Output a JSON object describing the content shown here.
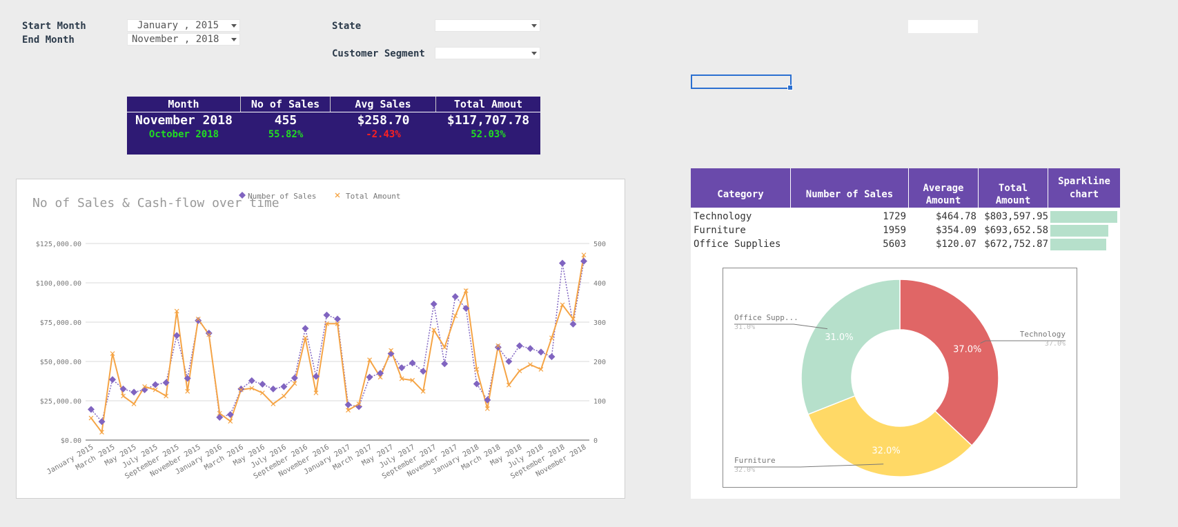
{
  "filters": {
    "start_month_label": "Start Month",
    "start_month_value": "January , 2015",
    "end_month_label": "End Month",
    "end_month_value": "November , 2018",
    "state_label": "State",
    "state_value": "",
    "segment_label": "Customer Segment",
    "segment_value": ""
  },
  "kpi": {
    "headers": [
      "Month",
      "No of Sales",
      "Avg Sales",
      "Total Amout"
    ],
    "current": [
      "November 2018",
      "455",
      "$258.70",
      "$117,707.78"
    ],
    "compare": [
      "October 2018",
      "55.82%",
      "-2.43%",
      "52.03%"
    ],
    "colors": {
      "bg": "#2e1a74",
      "positive": "#22dd22",
      "negative": "#ff2020"
    }
  },
  "category_table": {
    "headers": [
      "Category",
      "Number of Sales",
      "Average Amount",
      "Total Amount",
      "Sparkline chart"
    ],
    "rows": [
      {
        "category": "Technology",
        "sales": "1729",
        "avg": "$464.78",
        "total": "$803,597.95",
        "spark": 1.0
      },
      {
        "category": "Furniture",
        "sales": "1959",
        "avg": "$354.09",
        "total": "$693,652.58",
        "spark": 0.863
      },
      {
        "category": "Office Supplies",
        "sales": "5603",
        "avg": "$120.07",
        "total": "$672,752.87",
        "spark": 0.837
      }
    ]
  },
  "chart_data": [
    {
      "type": "line",
      "title": "No of Sales & Cash-flow over time",
      "x": [
        "January 2015",
        "February 2015",
        "March 2015",
        "April 2015",
        "May 2015",
        "June 2015",
        "July 2015",
        "August 2015",
        "September 2015",
        "October 2015",
        "November 2015",
        "December 2015",
        "January 2016",
        "February 2016",
        "March 2016",
        "April 2016",
        "May 2016",
        "June 2016",
        "July 2016",
        "August 2016",
        "September 2016",
        "October 2016",
        "November 2016",
        "December 2016",
        "January 2017",
        "February 2017",
        "March 2017",
        "April 2017",
        "May 2017",
        "June 2017",
        "July 2017",
        "August 2017",
        "September 2017",
        "October 2017",
        "November 2017",
        "December 2017",
        "January 2018",
        "February 2018",
        "March 2018",
        "April 2018",
        "May 2018",
        "June 2018",
        "July 2018",
        "August 2018",
        "September 2018",
        "October 2018",
        "November 2018"
      ],
      "x_tick_labels": [
        "January 2015",
        "March 2015",
        "May 2015",
        "July 2015",
        "September 2015",
        "November 2015",
        "January 2016",
        "March 2016",
        "May 2016",
        "July 2016",
        "September 2016",
        "November 2016",
        "January 2017",
        "March 2017",
        "May 2017",
        "July 2017",
        "September 2017",
        "November 2017",
        "January 2018",
        "March 2018",
        "May 2018",
        "July 2018",
        "September 2018",
        "November 2018"
      ],
      "y_left_ticks": [
        "$0.00",
        "$25,000.00",
        "$50,000.00",
        "$75,000.00",
        "$100,000.00",
        "$125,000.00"
      ],
      "y_left_lim": [
        0,
        125000
      ],
      "y_right_ticks": [
        "0",
        "100",
        "200",
        "300",
        "400",
        "500"
      ],
      "y_right_lim": [
        0,
        500
      ],
      "legend_position": "top",
      "grid": true,
      "series": [
        {
          "name": "Number of Sales",
          "axis": "right",
          "color": "#8064c0",
          "marker": "diamond",
          "values": [
            78,
            47,
            154,
            130,
            122,
            128,
            141,
            146,
            266,
            157,
            304,
            272,
            58,
            65,
            130,
            151,
            142,
            130,
            136,
            158,
            284,
            162,
            318,
            308,
            90,
            85,
            160,
            170,
            220,
            184,
            196,
            175,
            346,
            194,
            365,
            335,
            143,
            102,
            236,
            200,
            240,
            233,
            224,
            212,
            450,
            295,
            455
          ]
        },
        {
          "name": "Total Amount",
          "axis": "left",
          "color": "#f5a445",
          "marker": "x",
          "values": [
            14000,
            5000,
            55000,
            28000,
            23000,
            34000,
            32000,
            28000,
            82000,
            31000,
            77000,
            67000,
            17000,
            12000,
            32000,
            33000,
            30000,
            23000,
            28000,
            36000,
            65000,
            30000,
            74000,
            74000,
            19000,
            23000,
            51000,
            40000,
            57000,
            39000,
            38000,
            31000,
            70000,
            59000,
            79000,
            95000,
            45000,
            20000,
            60000,
            35000,
            44000,
            48000,
            45000,
            65000,
            86000,
            77000,
            117707.78
          ]
        }
      ]
    },
    {
      "type": "pie",
      "donut": true,
      "categories": [
        "Technology",
        "Furniture",
        "Office Supplies"
      ],
      "values": [
        37.0,
        32.0,
        31.0
      ],
      "value_labels": [
        "37.0%",
        "32.0%",
        "31.0%"
      ],
      "outer_labels": [
        "Technology",
        "Furniture",
        "Office Supp..."
      ],
      "colors": [
        "#e06666",
        "#ffd966",
        "#b6e0cb"
      ]
    }
  ]
}
